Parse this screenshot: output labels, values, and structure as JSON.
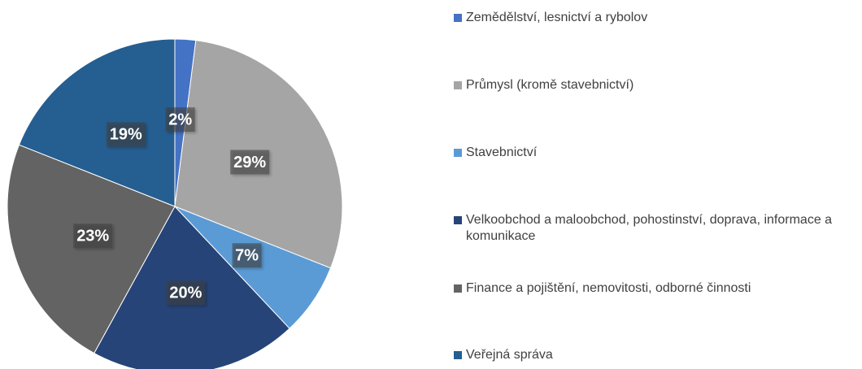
{
  "chart_data": {
    "type": "pie",
    "categories": [
      "Zemědělství, lesnictví a rybolov",
      "Průmysl (kromě stavebnictví)",
      "Stavebnictví",
      "Velkoobchod a maloobchod, pohostinství, doprava, informace a komunikace",
      "Finance a pojištění, nemovitosti, odborné činnosti",
      "Veřejná správa"
    ],
    "values": [
      2,
      29,
      7,
      20,
      23,
      19
    ],
    "value_labels": [
      "2%",
      "29%",
      "7%",
      "20%",
      "23%",
      "19%"
    ],
    "colors": [
      "#4472c4",
      "#a5a5a5",
      "#5b9bd5",
      "#264478",
      "#636363",
      "#255e91"
    ],
    "legend": "right"
  }
}
